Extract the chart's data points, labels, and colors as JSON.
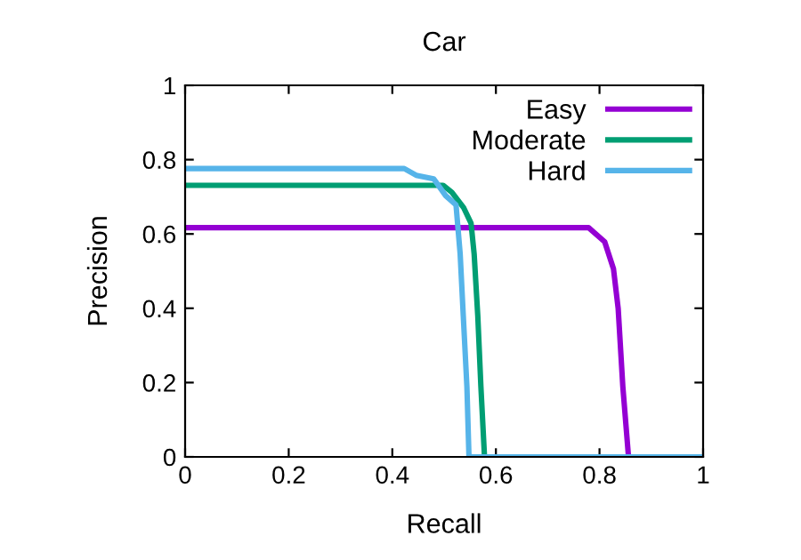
{
  "chart_data": {
    "type": "line",
    "title": "Car",
    "xlabel": "Recall",
    "ylabel": "Precision",
    "xlim": [
      0,
      1
    ],
    "ylim": [
      0,
      1
    ],
    "xticks": [
      0,
      0.2,
      0.4,
      0.6,
      0.8,
      1
    ],
    "yticks": [
      0,
      0.2,
      0.4,
      0.6,
      0.8,
      1
    ],
    "grid": false,
    "legend": "top right",
    "line_style": "solid",
    "marker": "none",
    "series": [
      {
        "name": "Easy",
        "color": "#9400d3",
        "x": [
          0,
          0.779,
          0.81,
          0.827,
          0.836,
          0.845,
          0.856
        ],
        "values": [
          0.617,
          0.617,
          0.579,
          0.506,
          0.4,
          0.19,
          0
        ]
      },
      {
        "name": "Moderate",
        "color": "#009e73",
        "x": [
          0,
          0.498,
          0.515,
          0.538,
          0.552,
          0.558,
          0.565,
          0.571,
          0.578
        ],
        "values": [
          0.731,
          0.731,
          0.712,
          0.67,
          0.629,
          0.546,
          0.38,
          0.19,
          0
        ]
      },
      {
        "name": "Hard",
        "color": "#56b4e9",
        "x": [
          0,
          0.423,
          0.446,
          0.48,
          0.503,
          0.523,
          0.531,
          0.537,
          0.544,
          0.548,
          1
        ],
        "values": [
          0.776,
          0.776,
          0.758,
          0.748,
          0.703,
          0.678,
          0.546,
          0.38,
          0.19,
          0,
          0
        ]
      }
    ]
  }
}
